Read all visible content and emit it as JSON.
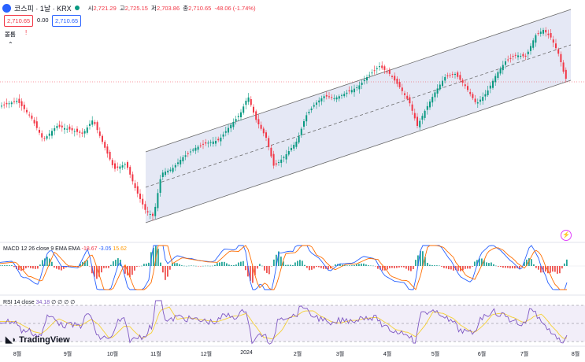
{
  "header": {
    "symbol": "코스피 · 1날 · KRX",
    "open_label": "시",
    "open": "2,721.29",
    "high_label": "고",
    "high": "2,725.15",
    "low_label": "저",
    "low": "2,703.86",
    "close_label": "종",
    "close": "2,710.65",
    "change": "-48.06 (-1.74%)",
    "bid": "2,710.65",
    "spread": "0.00",
    "ask": "2,710.65",
    "volume_label": "볼륨",
    "volume_icon": "warning-icon"
  },
  "indicators": {
    "macd": {
      "name": "MACD",
      "params": "12 26 close 9 EMA EMA",
      "hist": "-18.67",
      "macd": "-3.05",
      "signal": "15.62"
    },
    "rsi": {
      "name": "RSI",
      "params": "14 close",
      "value": "34.18",
      "extra": "∅ ∅ ∅ ∅"
    }
  },
  "brand": "TradingView",
  "x_axis": [
    "8월",
    "9월",
    "10월",
    "11월",
    "12월",
    "2024",
    "2월",
    "3월",
    "4월",
    "5월",
    "6월",
    "7월",
    "8월"
  ],
  "colors": {
    "up": "#089981",
    "down": "#f23645",
    "channel": "#c5cbe8",
    "macd": "#2962ff",
    "signal": "#ff6d00",
    "rsi": "#7e57c2",
    "rsi_ma": "#f5d033"
  }
}
